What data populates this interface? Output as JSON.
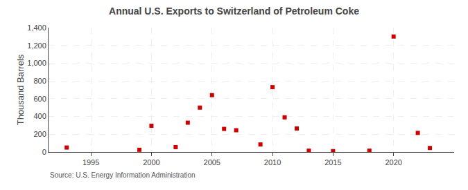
{
  "chart_data": {
    "type": "scatter",
    "title": "Annual U.S. Exports to Switzerland of Petroleum Coke",
    "ylabel": "Thousand Barrels",
    "annotations": [
      "Source: U.S. Energy Information Administration"
    ],
    "x": [
      1993,
      1999,
      2000,
      2002,
      2003,
      2004,
      2005,
      2006,
      2007,
      2009,
      2010,
      2011,
      2012,
      2013,
      2015,
      2018,
      2020,
      2022,
      2023
    ],
    "values": [
      50,
      25,
      295,
      55,
      330,
      500,
      640,
      260,
      245,
      85,
      730,
      390,
      265,
      15,
      10,
      15,
      1300,
      215,
      45
    ],
    "color": "#cc0000",
    "marker": "square",
    "xlim": [
      1991.5,
      2025
    ],
    "ylim": [
      0,
      1400
    ],
    "xticks": [
      1995,
      2000,
      2005,
      2010,
      2015,
      2020
    ],
    "yticks": [
      0,
      200,
      400,
      600,
      800,
      {
        "value": 1000,
        "label": "1,000"
      },
      {
        "value": 1200,
        "label": "1,200"
      },
      {
        "value": 1400,
        "label": "1,400"
      }
    ],
    "grid": true
  }
}
